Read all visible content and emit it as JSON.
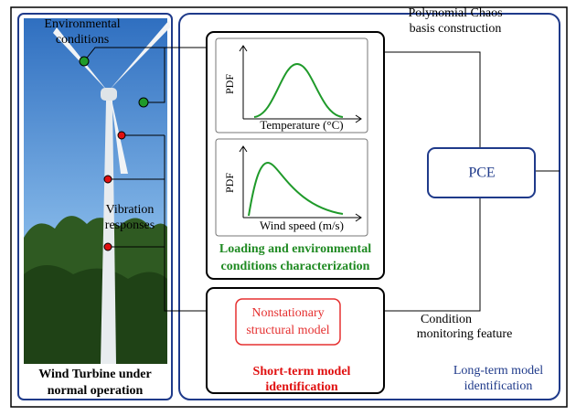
{
  "turbine_panel": {
    "environmental_label": [
      "Environmental",
      "conditions"
    ],
    "vibration_label": [
      "Vibration",
      "responses"
    ],
    "caption": [
      "Wind Turbine under",
      "normal operation"
    ]
  },
  "loading_box": {
    "plots": [
      {
        "y_label": "PDF",
        "x_label": "Temperature (°C)"
      },
      {
        "y_label": "PDF",
        "x_label": "Wind speed (m/s)"
      }
    ],
    "caption": [
      "Loading and environmental",
      "conditions characterization"
    ]
  },
  "short_term_box": {
    "model": [
      "Nonstationary",
      "structural model"
    ],
    "caption": [
      "Short-term model",
      "identification"
    ]
  },
  "long_term": {
    "pce": "PCE",
    "basis_label": [
      "Polynomial Chaos",
      "basis construction"
    ],
    "feature_label": [
      "Condition",
      "monitoring feature"
    ],
    "caption": [
      "Long-term model",
      "identification"
    ]
  }
}
